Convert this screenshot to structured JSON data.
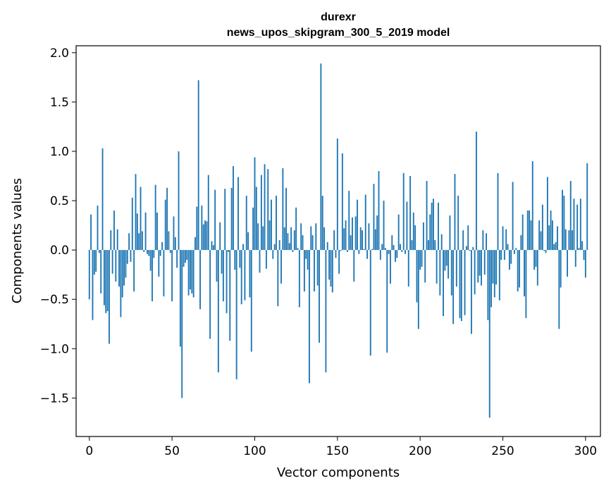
{
  "chart_data": {
    "type": "bar",
    "title": "durexr",
    "subtitle": "news_upos_skipgram_300_5_2019 model",
    "xlabel": "Vector components",
    "ylabel": "Components values",
    "xlim": [
      -8,
      309
    ],
    "ylim": [
      -1.89,
      2.07
    ],
    "xticks": [
      0,
      50,
      100,
      150,
      200,
      250,
      300
    ],
    "yticks": [
      2.0,
      1.5,
      1.0,
      0.5,
      0.0,
      -0.5,
      -1.0,
      -1.5
    ],
    "ytick_labels": [
      "2.0",
      "1.5",
      "1.0",
      "0.5",
      "0.0",
      "−0.5",
      "−1.0",
      "−1.5"
    ],
    "bar_color": "#1f77b4",
    "values": [
      -0.5,
      0.36,
      -0.71,
      -0.25,
      -0.22,
      0.45,
      -0.03,
      -0.44,
      1.03,
      -0.56,
      -0.64,
      -0.62,
      -0.95,
      0.2,
      -0.24,
      0.4,
      -0.32,
      0.21,
      -0.37,
      -0.68,
      -0.48,
      -0.36,
      -0.28,
      -0.14,
      0.17,
      -0.12,
      0.53,
      -0.42,
      0.77,
      0.37,
      0.17,
      0.64,
      0.19,
      -0.02,
      0.38,
      -0.04,
      -0.06,
      -0.21,
      -0.52,
      -0.08,
      0.66,
      0.38,
      -0.27,
      -0.06,
      0.08,
      -0.47,
      0.51,
      0.63,
      0.19,
      -0.03,
      -0.52,
      0.34,
      0.13,
      -0.18,
      1.0,
      -0.98,
      -1.5,
      -0.17,
      -0.13,
      -0.1,
      -0.46,
      -0.4,
      -0.44,
      -0.48,
      0.13,
      0.44,
      1.72,
      -0.6,
      0.45,
      0.26,
      0.3,
      0.29,
      0.76,
      -0.9,
      0.09,
      0.05,
      0.61,
      -0.32,
      -1.24,
      0.28,
      -0.24,
      -0.52,
      0.62,
      -0.64,
      -0.02,
      -0.92,
      0.63,
      0.85,
      -0.2,
      -1.31,
      0.74,
      -0.18,
      -0.55,
      0.06,
      -0.51,
      0.55,
      0.18,
      -0.48,
      -1.03,
      0.43,
      0.94,
      0.64,
      0.27,
      -0.23,
      0.76,
      0.24,
      0.87,
      -0.19,
      0.82,
      0.3,
      0.51,
      -0.09,
      0.06,
      0.55,
      -0.57,
      0.1,
      -0.34,
      0.83,
      0.23,
      0.63,
      0.17,
      0.07,
      0.23,
      -0.02,
      0.2,
      0.43,
      0.02,
      -0.58,
      0.27,
      0.15,
      -0.42,
      -0.09,
      -0.2,
      -1.35,
      0.24,
      0.15,
      -0.42,
      0.27,
      -0.36,
      -0.94,
      1.89,
      0.55,
      0.23,
      -1.24,
      0.08,
      -0.3,
      -0.37,
      -0.43,
      0.2,
      -0.08,
      1.13,
      -0.24,
      -0.01,
      0.98,
      0.22,
      0.3,
      -0.02,
      0.6,
      0.15,
      0.33,
      -0.32,
      0.34,
      0.51,
      -0.04,
      0.23,
      0.2,
      0.01,
      0.56,
      -0.09,
      0.27,
      -1.07,
      0.01,
      0.67,
      0.21,
      0.35,
      0.8,
      -0.1,
      0.06,
      0.5,
      0.02,
      -1.04,
      -0.04,
      -0.34,
      0.15,
      0.05,
      -0.12,
      -0.08,
      0.36,
      0.06,
      -0.02,
      0.78,
      -0.04,
      0.49,
      -0.37,
      0.75,
      0.1,
      0.38,
      0.25,
      -0.53,
      -0.8,
      -0.2,
      -0.17,
      0.28,
      -0.33,
      0.7,
      0.1,
      0.36,
      0.48,
      0.52,
      0.1,
      -0.34,
      0.48,
      -0.46,
      0.16,
      -0.67,
      -0.21,
      -0.16,
      -0.29,
      0.35,
      -0.46,
      -0.75,
      0.77,
      -0.37,
      0.55,
      -0.69,
      -0.72,
      0.2,
      -0.66,
      0.04,
      0.25,
      -0.01,
      -0.85,
      0.03,
      -0.45,
      1.2,
      -0.33,
      -0.26,
      -0.36,
      0.2,
      -0.25,
      0.17,
      -0.71,
      -1.7,
      -0.58,
      -0.34,
      -0.48,
      -0.35,
      0.78,
      -0.51,
      -0.1,
      0.24,
      -0.1,
      0.21,
      0.06,
      -0.2,
      -0.14,
      0.69,
      -0.04,
      0.02,
      -0.42,
      -0.38,
      0.15,
      0.36,
      -0.47,
      -0.69,
      0.4,
      0.4,
      0.3,
      0.9,
      -0.2,
      -0.17,
      -0.36,
      0.3,
      0.19,
      0.46,
      -0.01,
      -0.03,
      0.74,
      0.25,
      0.4,
      0.3,
      0.06,
      0.08,
      0.24,
      -0.8,
      -0.38,
      0.61,
      0.55,
      0.21,
      -0.27,
      0.2,
      0.7,
      0.2,
      0.52,
      -0.17,
      0.46,
      0.02,
      0.52,
      0.09,
      -0.1,
      -0.28,
      0.88
    ]
  }
}
